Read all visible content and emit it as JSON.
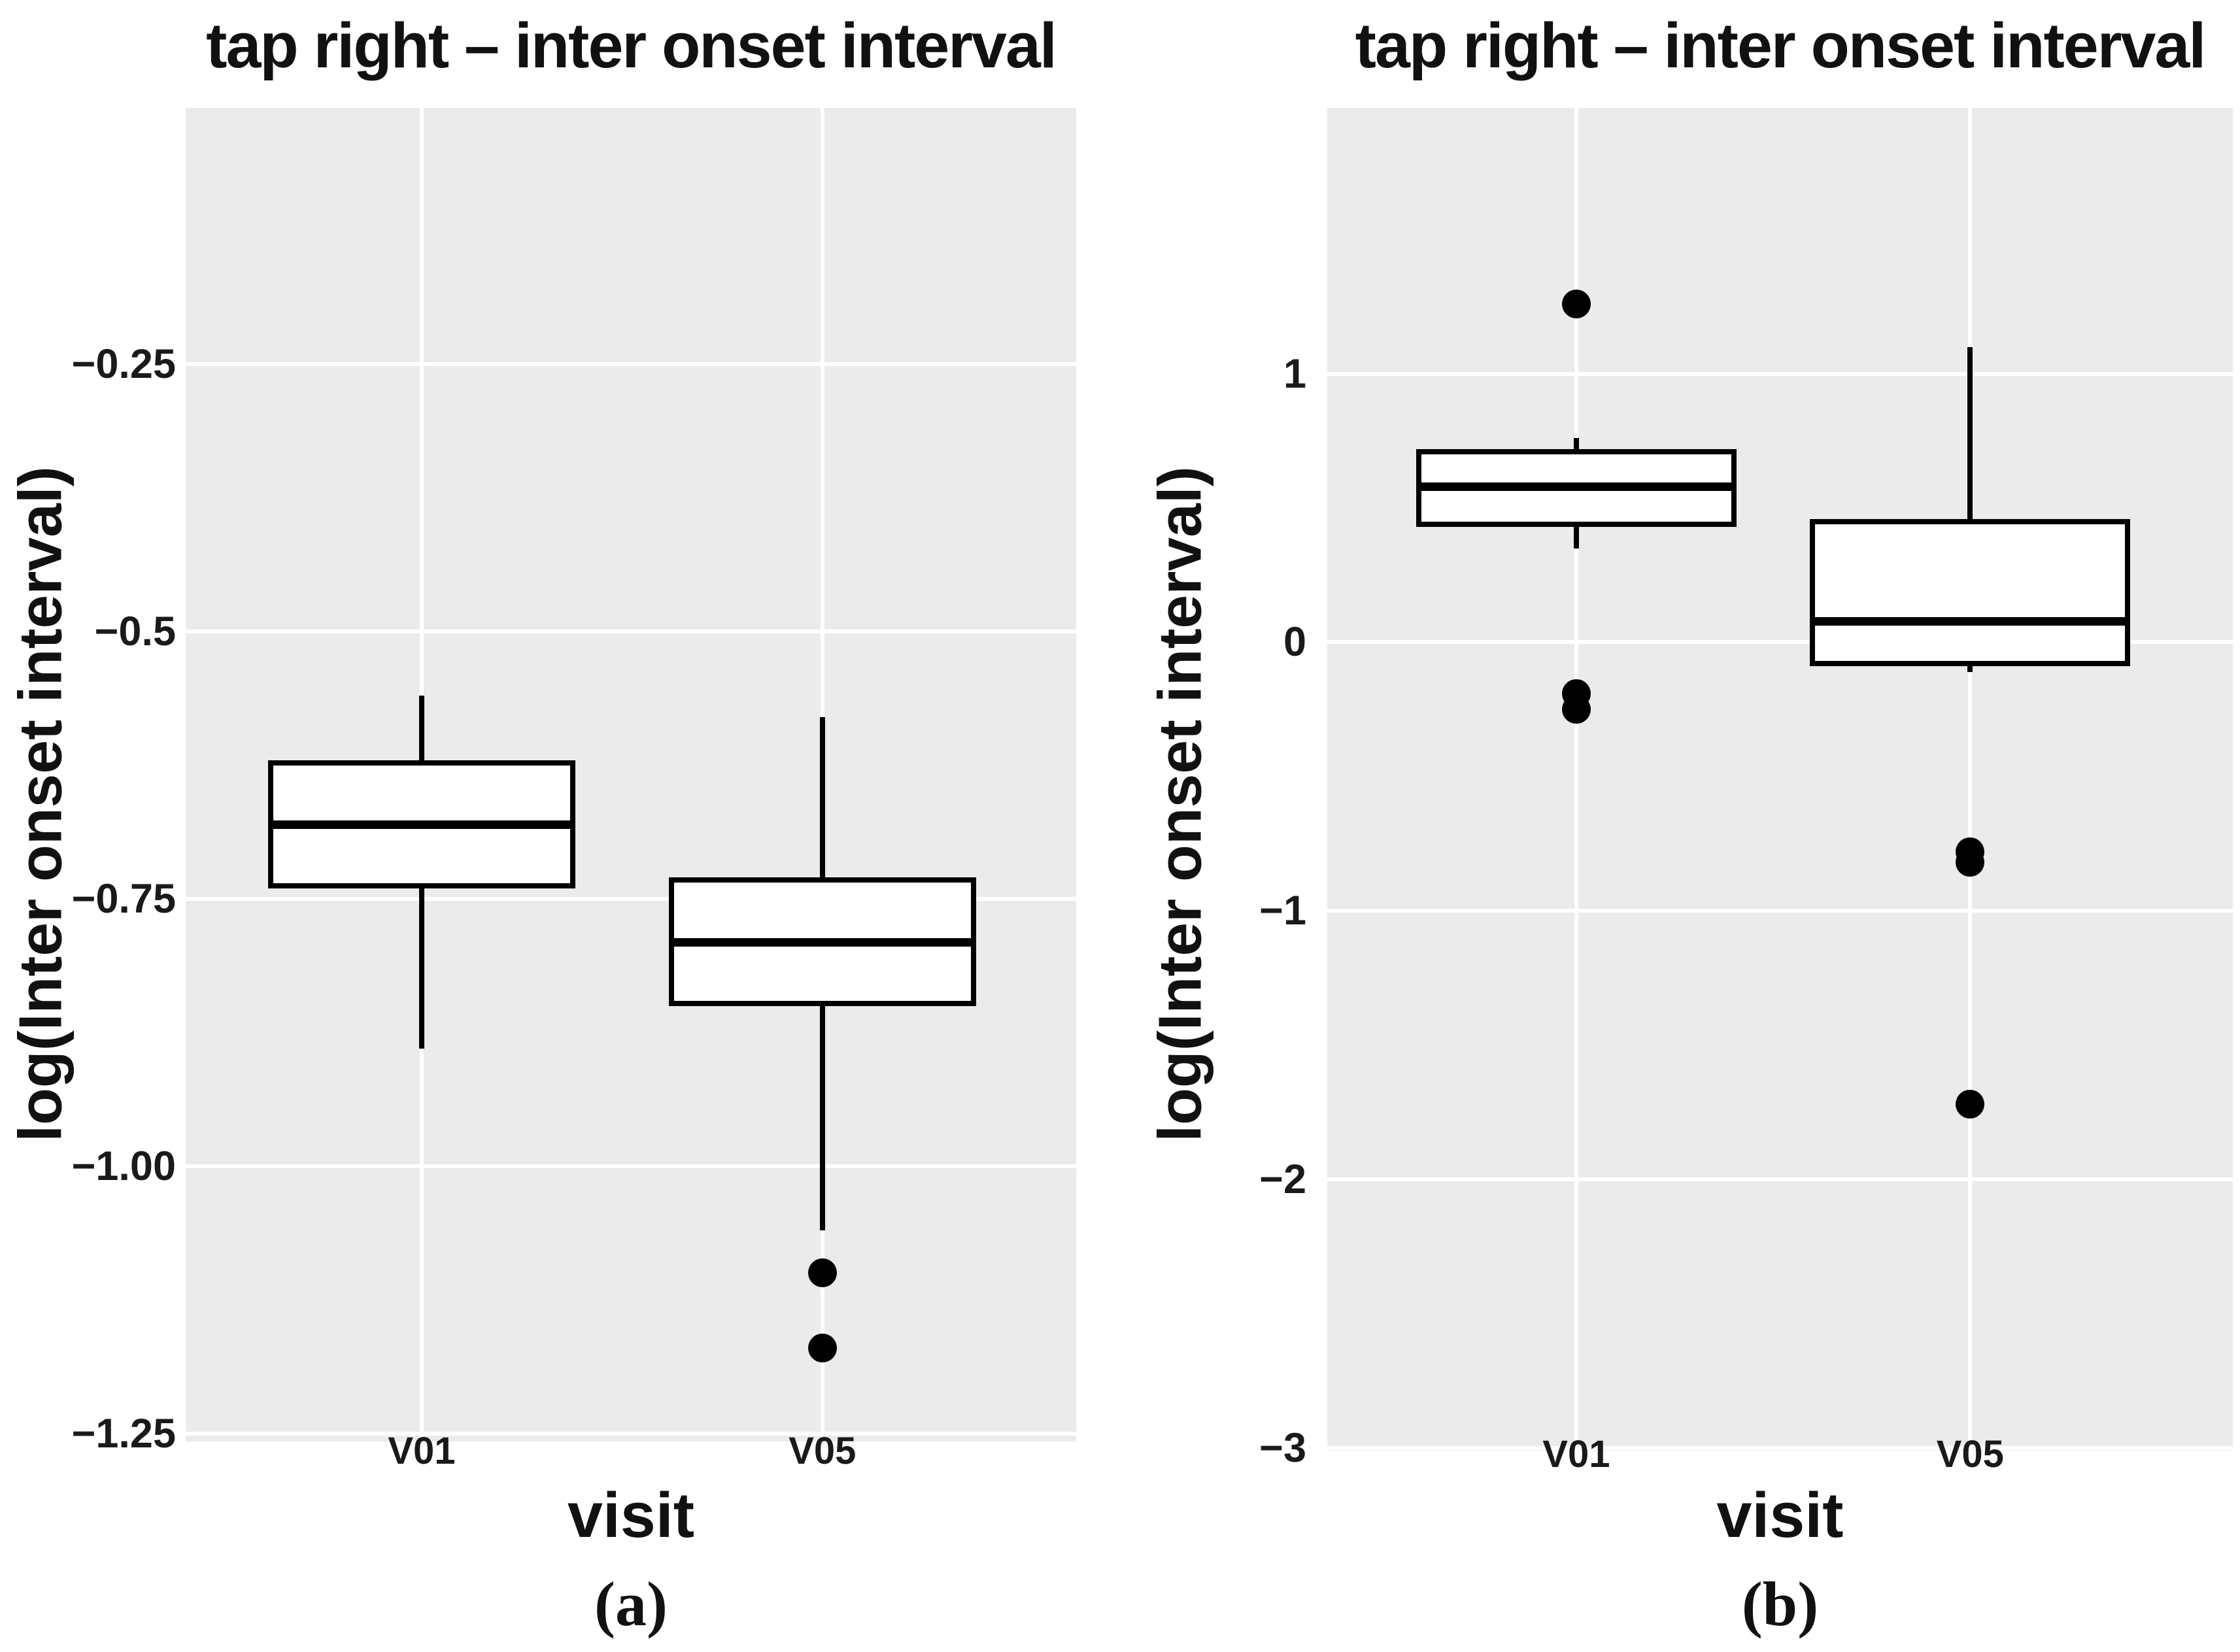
{
  "captions": {
    "a": "(a)",
    "b": "(b)"
  },
  "colors": {
    "panel_background": "#ebebeb",
    "gridline": "#ffffff",
    "box_fill": "#ffffff",
    "box_line": "#000000",
    "text": "#111111"
  },
  "chart_data": [
    {
      "type": "boxplot",
      "panel": "a",
      "title": "tap right – inter onset interval",
      "xlabel": "visit",
      "ylabel": "log(Inter onset interval)",
      "categories": [
        "V01",
        "V05"
      ],
      "ylim": [
        -1.2575,
        -0.01
      ],
      "yticks": [
        -0.25,
        -0.5,
        -0.75,
        -1.0,
        -1.25
      ],
      "ytick_labels": [
        "−0.25",
        "−0.5",
        "−0.75",
        "−1.00",
        "−1.25"
      ],
      "grid": "major-horizontal-plus-category-vertical",
      "legend": "none",
      "series": [
        {
          "category": "V01",
          "whisker_low": -0.89,
          "q1": -0.74,
          "median": -0.68,
          "q3": -0.62,
          "whisker_high": -0.56,
          "outliers": []
        },
        {
          "category": "V05",
          "whisker_low": -1.06,
          "q1": -0.85,
          "median": -0.79,
          "q3": -0.73,
          "whisker_high": -0.58,
          "outliers": [
            -1.1,
            -1.17
          ]
        }
      ]
    },
    {
      "type": "boxplot",
      "panel": "b",
      "title": "tap right – inter onset interval",
      "xlabel": "visit",
      "ylabel": "log(Inter onset interval)",
      "categories": [
        "V01",
        "V05"
      ],
      "ylim": [
        -3.01,
        1.99
      ],
      "yticks": [
        1,
        0,
        -1,
        -2,
        -3
      ],
      "ytick_labels": [
        "1",
        "0",
        "−1",
        "−2",
        "−3"
      ],
      "grid": "major-horizontal-plus-category-vertical",
      "legend": "none",
      "series": [
        {
          "category": "V01",
          "whisker_low": 0.35,
          "q1": 0.43,
          "median": 0.58,
          "q3": 0.72,
          "whisker_high": 0.76,
          "outliers": [
            1.26,
            -0.19,
            -0.25
          ]
        },
        {
          "category": "V05",
          "whisker_low": -0.11,
          "q1": -0.09,
          "median": 0.08,
          "q3": 0.46,
          "whisker_high": 1.1,
          "outliers": [
            -0.78,
            -0.82,
            -1.72
          ]
        }
      ]
    }
  ]
}
